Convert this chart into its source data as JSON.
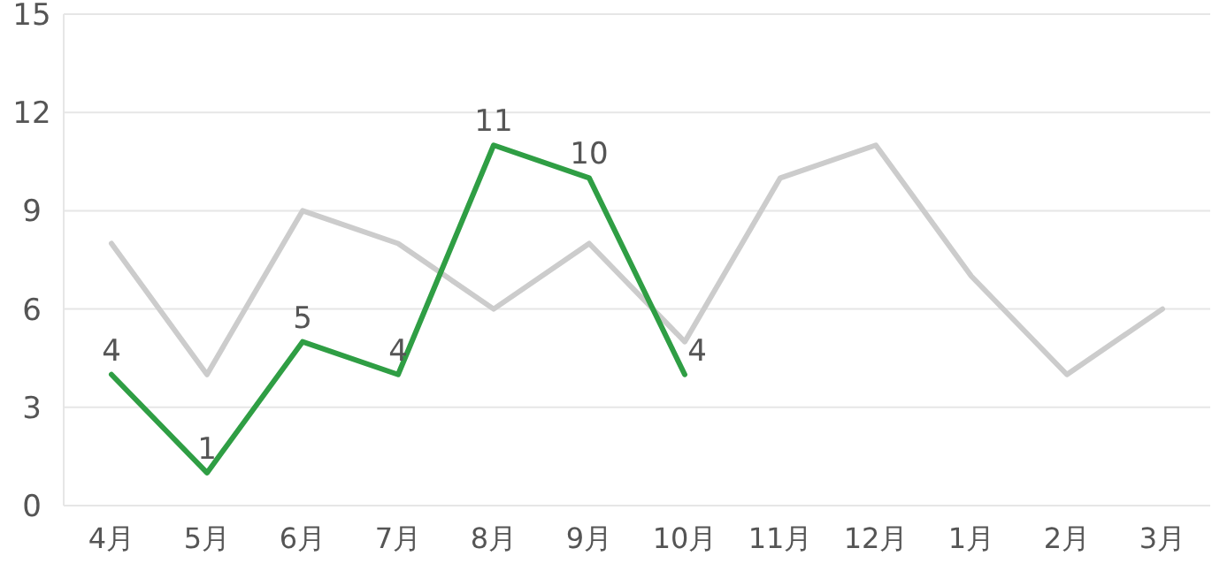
{
  "chart_data": {
    "type": "line",
    "categories": [
      "4月",
      "5月",
      "6月",
      "7月",
      "8月",
      "9月",
      "10月",
      "11月",
      "12月",
      "1月",
      "2月",
      "3月"
    ],
    "series": [
      {
        "color": "#cccccc",
        "values": [
          8,
          4,
          9,
          8,
          6,
          8,
          5,
          10,
          11,
          7,
          4,
          6
        ]
      },
      {
        "color": "#2f9e44",
        "values": [
          4,
          1,
          5,
          4,
          11,
          10,
          4,
          null,
          null,
          null,
          null,
          null
        ],
        "value_labels": [
          "4",
          "1",
          "5",
          "4",
          "11",
          "10",
          "4",
          null,
          null,
          null,
          null,
          null
        ]
      }
    ],
    "ylim": [
      0,
      15
    ],
    "yticks": [
      0,
      3,
      6,
      9,
      12,
      15
    ],
    "grid": "y",
    "marker": "none",
    "line_style": "solid"
  }
}
